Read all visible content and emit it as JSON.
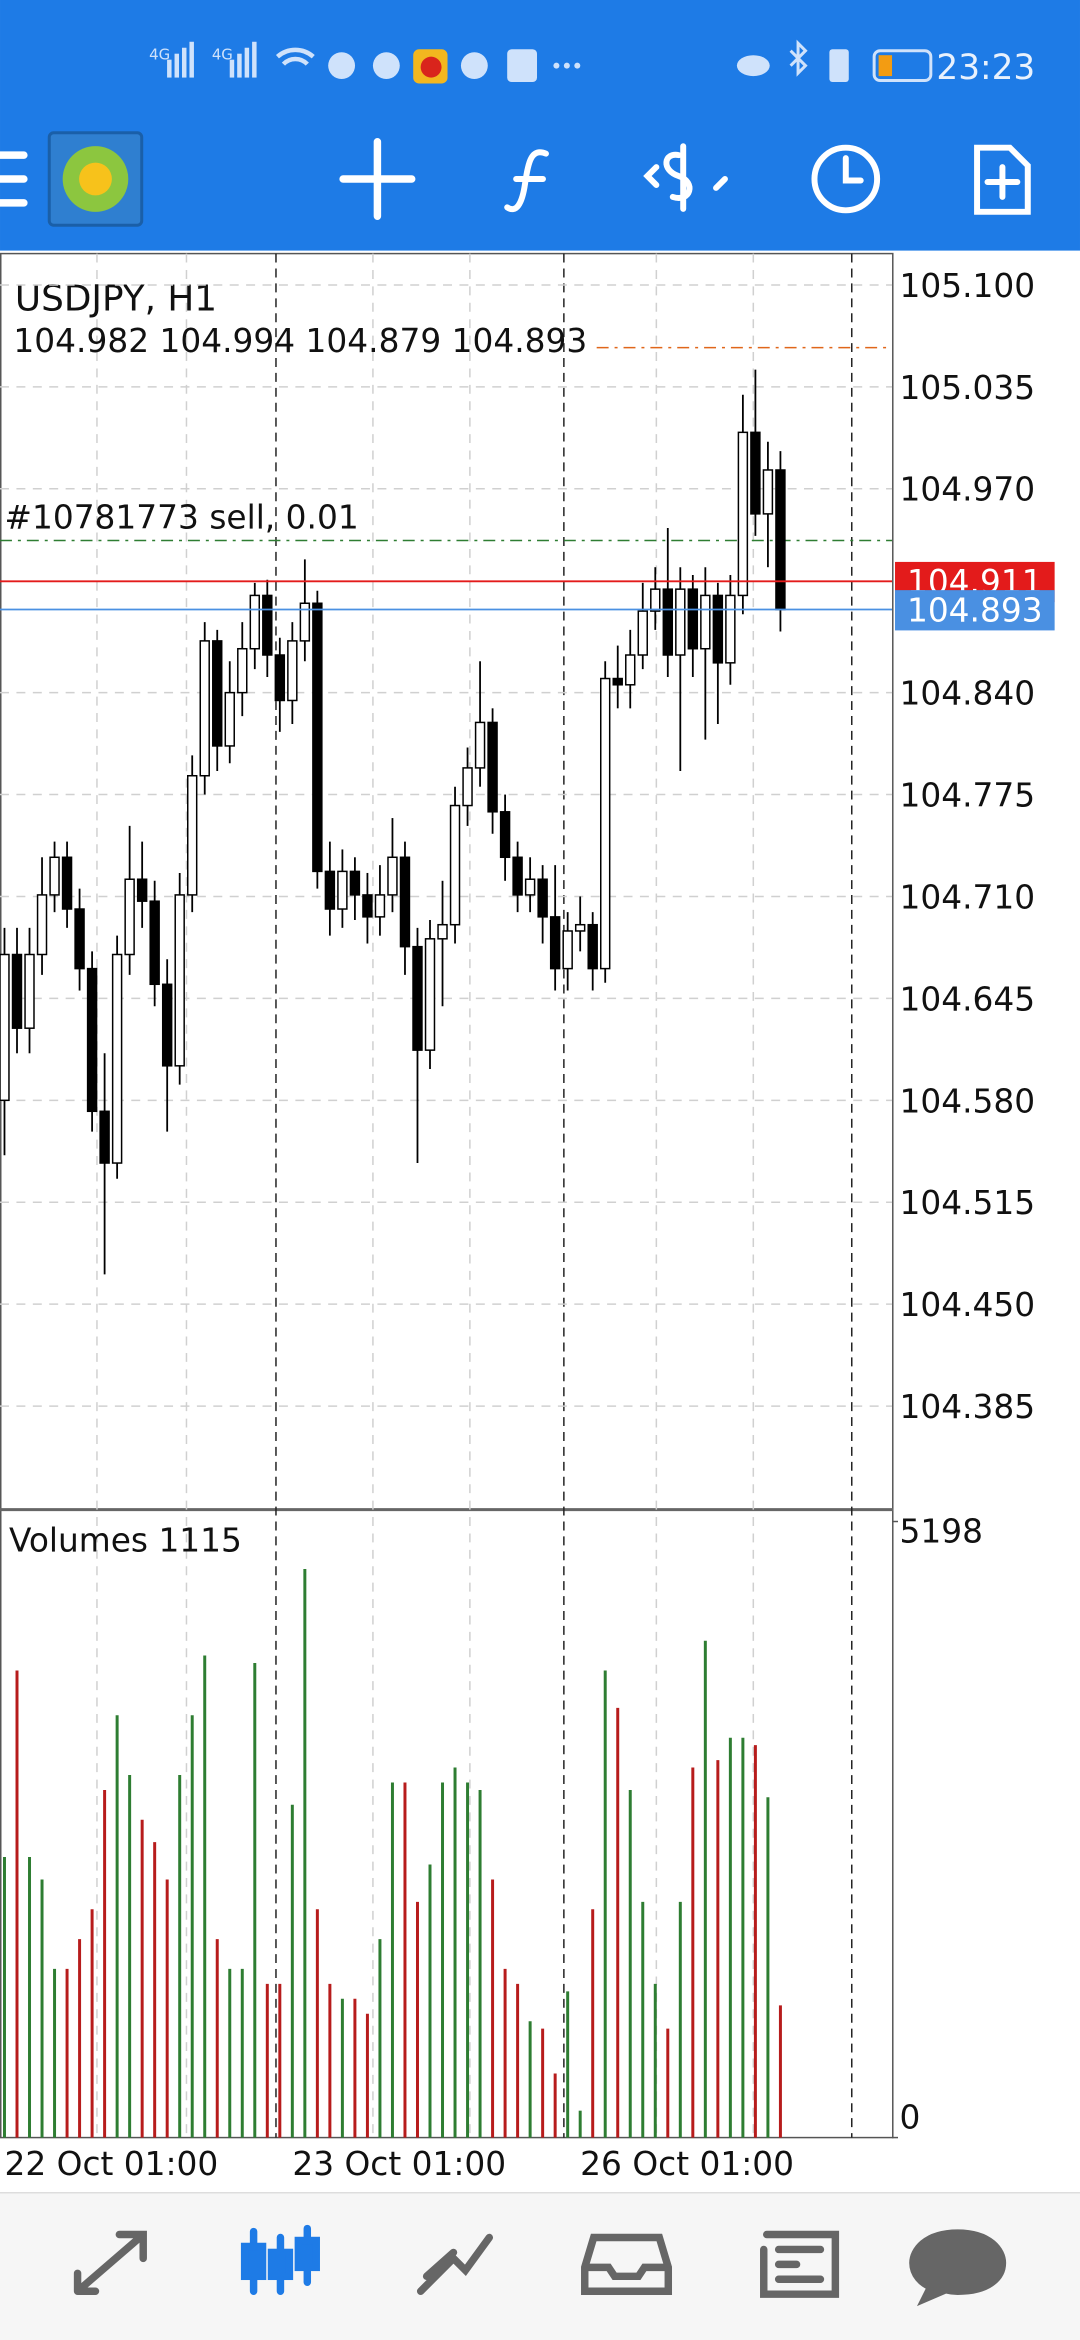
{
  "status_bar": {
    "time": "23:23",
    "network": [
      "4G",
      "4G"
    ]
  },
  "chart_data": {
    "type": "candlestick",
    "title": "USDJPY, H1",
    "open": [
      104.58,
      104.673,
      104.626,
      104.673,
      104.711,
      104.735,
      104.702,
      104.664,
      104.573,
      104.54,
      104.673,
      104.721,
      104.707,
      104.654,
      104.602,
      104.711,
      104.787,
      104.873,
      104.806,
      104.84,
      104.868,
      104.902,
      104.864,
      104.835,
      104.873,
      104.897,
      104.726,
      104.702,
      104.726,
      104.711,
      104.697,
      104.711,
      104.735,
      104.678,
      104.612,
      104.683,
      104.692,
      104.768,
      104.792,
      104.821,
      104.764,
      104.735,
      104.711,
      104.721,
      104.697,
      104.664,
      104.688,
      104.692,
      104.664,
      104.849,
      104.845,
      104.864,
      104.892,
      104.906,
      104.864,
      104.906,
      104.868,
      104.902,
      104.859,
      104.902,
      105.006,
      104.954,
      104.982
    ],
    "high": [
      104.69,
      104.69,
      104.69,
      104.735,
      104.745,
      104.745,
      104.715,
      104.675,
      104.61,
      104.685,
      104.755,
      104.745,
      104.72,
      104.67,
      104.725,
      104.8,
      104.885,
      104.88,
      104.86,
      104.885,
      104.91,
      104.912,
      104.875,
      104.885,
      104.925,
      104.905,
      104.745,
      104.74,
      104.735,
      104.725,
      104.73,
      104.76,
      104.745,
      104.69,
      104.695,
      104.72,
      104.78,
      104.805,
      104.86,
      104.83,
      104.775,
      104.745,
      104.735,
      104.73,
      104.73,
      104.7,
      104.71,
      104.7,
      104.86,
      104.87,
      104.88,
      104.91,
      104.92,
      104.945,
      104.92,
      104.915,
      104.92,
      104.91,
      104.915,
      105.03,
      105.046,
      105.0,
      104.994
    ],
    "low": [
      104.545,
      104.61,
      104.61,
      104.66,
      104.7,
      104.69,
      104.65,
      104.56,
      104.469,
      104.53,
      104.66,
      104.69,
      104.64,
      104.56,
      104.59,
      104.7,
      104.775,
      104.79,
      104.795,
      104.825,
      104.855,
      104.85,
      104.815,
      104.82,
      104.86,
      104.715,
      104.685,
      104.69,
      104.695,
      104.68,
      104.685,
      104.7,
      104.66,
      104.54,
      104.6,
      104.64,
      104.68,
      104.755,
      104.78,
      104.75,
      104.72,
      104.7,
      104.7,
      104.68,
      104.65,
      104.65,
      104.675,
      104.65,
      104.655,
      104.83,
      104.83,
      104.855,
      104.88,
      104.85,
      104.79,
      104.85,
      104.81,
      104.82,
      104.845,
      104.89,
      104.94,
      104.92,
      104.879
    ],
    "close": [
      104.673,
      104.626,
      104.673,
      104.711,
      104.735,
      104.702,
      104.664,
      104.573,
      104.54,
      104.673,
      104.721,
      104.707,
      104.654,
      104.602,
      104.711,
      104.787,
      104.873,
      104.806,
      104.84,
      104.868,
      104.902,
      104.864,
      104.835,
      104.873,
      104.897,
      104.726,
      104.702,
      104.726,
      104.711,
      104.697,
      104.711,
      104.735,
      104.678,
      104.612,
      104.683,
      104.692,
      104.768,
      104.792,
      104.821,
      104.764,
      104.735,
      104.711,
      104.721,
      104.697,
      104.664,
      104.688,
      104.692,
      104.664,
      104.849,
      104.845,
      104.864,
      104.892,
      104.906,
      104.864,
      104.906,
      104.868,
      104.902,
      104.859,
      104.902,
      105.006,
      104.954,
      104.982,
      104.893
    ],
    "ylim": [
      104.319,
      105.12
    ],
    "yticks": [
      104.385,
      {
        "value": 104.45,
        "label": "104.450"
      },
      104.515,
      {
        "value": 104.58,
        "label": "104.580"
      },
      104.645,
      {
        "value": 104.71,
        "label": "104.710"
      },
      104.775,
      {
        "value": 104.84,
        "label": "104.840"
      },
      {
        "value": 104.97,
        "label": "104.970"
      },
      105.035,
      {
        "value": 105.1,
        "label": "105.100"
      }
    ],
    "x_labels": [
      {
        "index": 0,
        "label": "22 Oct 01:00"
      },
      {
        "index": 23,
        "label": "23 Oct 01:00"
      },
      {
        "index": 46,
        "label": "26 Oct 01:00"
      }
    ],
    "grid": true,
    "up_color": "#ffffff",
    "down_color": "#000000",
    "ask": {
      "value": 104.911,
      "color": "#e31b1b"
    },
    "bid": {
      "value": 104.893,
      "color": "#4a90e2"
    },
    "order": {
      "label": "#10781773 sell, 0.01",
      "price": 104.937,
      "color": "#2e7d32"
    },
    "target": {
      "price": 105.06,
      "color": "#e0661a"
    },
    "volume": {
      "title": "Volumes 1115",
      "values": [
        2367,
        3941,
        2367,
        2178,
        1423,
        1423,
        1674,
        1926,
        2933,
        3563,
        3059,
        2682,
        2493,
        2178,
        3059,
        3563,
        4067,
        1674,
        1423,
        1423,
        4004,
        1297,
        1297,
        2808,
        4797,
        1926,
        1297,
        1171,
        1171,
        1045,
        1674,
        2996,
        2996,
        1989,
        2304,
        2996,
        3122,
        2996,
        2933,
        2178,
        1423,
        1297,
        982,
        919,
        541,
        1234,
        227,
        1926,
        3941,
        3626,
        2933,
        1989,
        1297,
        919,
        1989,
        3122,
        4192,
        3185,
        3374,
        3374,
        3311,
        2871,
        1115
      ],
      "ylim": [
        0,
        5198
      ],
      "yticks": [
        0,
        5198
      ],
      "up_color": "#2e7d32",
      "down_color": "#b71c1c"
    }
  }
}
